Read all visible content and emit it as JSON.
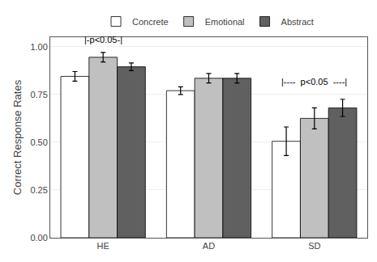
{
  "chart_data": {
    "type": "bar",
    "categories": [
      "HE",
      "AD",
      "SD"
    ],
    "series": [
      {
        "name": "Concrete",
        "color": "#ffffff",
        "values": [
          0.845,
          0.77,
          0.505
        ],
        "errors": [
          0.025,
          0.02,
          0.075
        ]
      },
      {
        "name": "Emotional",
        "color": "#c0c0c0",
        "values": [
          0.945,
          0.835,
          0.625
        ],
        "errors": [
          0.025,
          0.025,
          0.055
        ]
      },
      {
        "name": "Abstract",
        "color": "#606060",
        "values": [
          0.895,
          0.835,
          0.68
        ],
        "errors": [
          0.02,
          0.025,
          0.045
        ]
      }
    ],
    "y_label": "Correct Response Rates",
    "ylim": [
      0.0,
      1.05
    ],
    "yticks": [
      {
        "value": 0.0,
        "label": "0.00"
      },
      0.25,
      {
        "value": 0.5,
        "label": "0.50"
      },
      0.75,
      {
        "value": 1.0,
        "label": "1.00"
      }
    ],
    "annotations": [
      {
        "text": "|-p<0.05-|",
        "x": "HE",
        "y": 1.002
      },
      {
        "text": "|----  p<0.05  ----|",
        "x": "SD",
        "y": 0.782
      }
    ],
    "grid": true,
    "legend": "top"
  }
}
